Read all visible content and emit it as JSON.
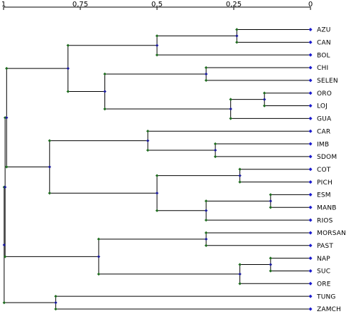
{
  "chart_data": {
    "type": "dendrogram",
    "orientation": "leaves-right",
    "axis": {
      "range": [
        1,
        0
      ],
      "ticks": [
        {
          "value": 1,
          "label": "1"
        },
        {
          "value": 0.75,
          "label": "0,75"
        },
        {
          "value": 0.5,
          "label": "0,5"
        },
        {
          "value": 0.25,
          "label": "0,25"
        },
        {
          "value": 0,
          "label": "0"
        }
      ]
    },
    "colors": {
      "line": "#000000",
      "leaf_node": "#1a1acc",
      "merge_node": "#1a1a99",
      "endpoint": "#1f6b1f"
    },
    "leaves": [
      "AZU",
      "CAN",
      "BOL",
      "CHI",
      "SELEN",
      "ORO",
      "LOJ",
      "GUA",
      "CAR",
      "IMB",
      "SDOM",
      "COT",
      "PICH",
      "ESM",
      "MANB",
      "RIOS",
      "MORSAN",
      "PAST",
      "NAP",
      "SUC",
      "ORE",
      "TUNG",
      "ZAMCH"
    ],
    "merges": [
      {
        "a": 0,
        "b": 1,
        "height": 0.24
      },
      {
        "a": "m0",
        "b": 2,
        "height": 0.5
      },
      {
        "a": 3,
        "b": 4,
        "height": 0.34
      },
      {
        "a": 5,
        "b": 6,
        "height": 0.15
      },
      {
        "a": "m3",
        "b": 7,
        "height": 0.26
      },
      {
        "a": "m2",
        "b": "m4",
        "height": 0.67
      },
      {
        "a": "m1",
        "b": "m5",
        "height": 0.79
      },
      {
        "a": 9,
        "b": 10,
        "height": 0.31
      },
      {
        "a": 8,
        "b": "m7",
        "height": 0.53
      },
      {
        "a": 11,
        "b": 12,
        "height": 0.23
      },
      {
        "a": 13,
        "b": 14,
        "height": 0.13
      },
      {
        "a": "m10",
        "b": 15,
        "height": 0.34
      },
      {
        "a": "m9",
        "b": "m11",
        "height": 0.5
      },
      {
        "a": "m8",
        "b": "m12",
        "height": 0.85
      },
      {
        "a": 16,
        "b": 17,
        "height": 0.34
      },
      {
        "a": 18,
        "b": 19,
        "height": 0.13
      },
      {
        "a": "m15",
        "b": 20,
        "height": 0.23
      },
      {
        "a": "m14",
        "b": "m16",
        "height": 0.69
      },
      {
        "a": 21,
        "b": 22,
        "height": 0.83
      },
      {
        "a": "m6",
        "b": "m13",
        "height": 0.99
      },
      {
        "a": "m19",
        "b": "m17",
        "height": 0.995
      },
      {
        "a": "m20",
        "b": "m18",
        "height": 0.998
      }
    ]
  }
}
